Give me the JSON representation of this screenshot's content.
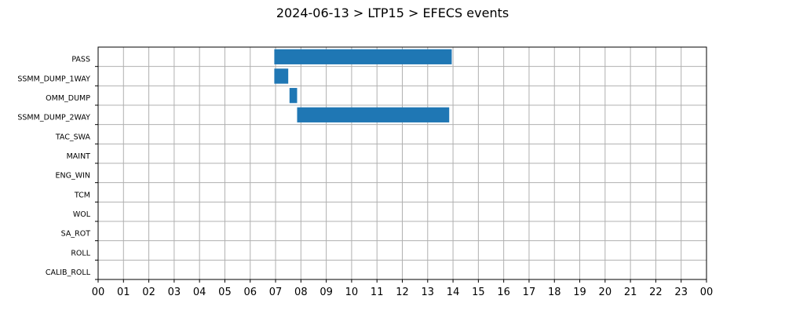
{
  "chart_data": {
    "type": "bar",
    "orientation": "horizontal",
    "title": "2024-06-13 > LTP15 > EFECS events",
    "xlabel": "",
    "ylabel": "",
    "x_ticks": [
      "00",
      "01",
      "02",
      "03",
      "04",
      "05",
      "06",
      "07",
      "08",
      "09",
      "10",
      "11",
      "12",
      "13",
      "14",
      "15",
      "16",
      "17",
      "18",
      "19",
      "20",
      "21",
      "22",
      "23",
      "00"
    ],
    "xlim": [
      0,
      24
    ],
    "grid": true,
    "categories": [
      "PASS",
      "SSMM_DUMP_1WAY",
      "OMM_DUMP",
      "SSMM_DUMP_2WAY",
      "TAC_SWA",
      "MAINT",
      "ENG_WIN",
      "TCM",
      "WOL",
      "SA_ROT",
      "ROLL",
      "CALIB_ROLL"
    ],
    "events": [
      {
        "category": "PASS",
        "start": 6.95,
        "end": 13.95
      },
      {
        "category": "SSMM_DUMP_1WAY",
        "start": 6.95,
        "end": 7.5
      },
      {
        "category": "OMM_DUMP",
        "start": 7.55,
        "end": 7.85
      },
      {
        "category": "SSMM_DUMP_2WAY",
        "start": 7.85,
        "end": 13.85
      }
    ],
    "bar_color": "#1f77b4",
    "grid_color": "#b0b0b0"
  }
}
